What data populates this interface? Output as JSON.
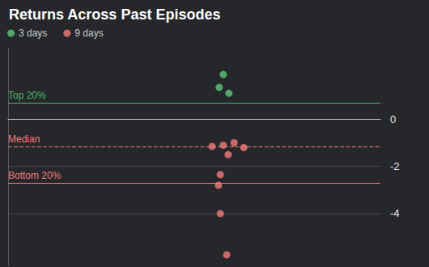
{
  "chart_data": {
    "type": "scatter",
    "title": "Returns Across Past Episodes",
    "xlim": [
      0,
      100
    ],
    "ylim": [
      -6.2,
      3
    ],
    "yticks": [
      -4,
      -2,
      0
    ],
    "grid": true,
    "tick_labels": "y",
    "legend": "top left",
    "series": [
      {
        "name": "3 days",
        "color": "#5cc77a",
        "marker": "circle",
        "x": [
          57.8,
          56.7,
          59.3
        ],
        "values": [
          1.9,
          1.35,
          1.1
        ]
      },
      {
        "name": "9 days",
        "color": "#f27c7a",
        "marker": "circle",
        "x": [
          54.8,
          57.8,
          60.7,
          63.3,
          59.1,
          57.0,
          56.5,
          57.0,
          58.7
        ],
        "values": [
          -1.15,
          -1.1,
          -1.0,
          -1.2,
          -1.5,
          -2.35,
          -2.8,
          -4.0,
          -5.75
        ]
      }
    ],
    "reference_lines": [
      {
        "label": "Top 20%",
        "value": 0.7,
        "color": "#4db36c",
        "line_style": "solid"
      },
      {
        "label": "Median",
        "value": -1.15,
        "color": "#f27c7a",
        "line_style": "dashed"
      },
      {
        "label": "Bottom 20%",
        "value": -2.7,
        "color": "#f27c7a",
        "line_style": "solid"
      }
    ]
  }
}
